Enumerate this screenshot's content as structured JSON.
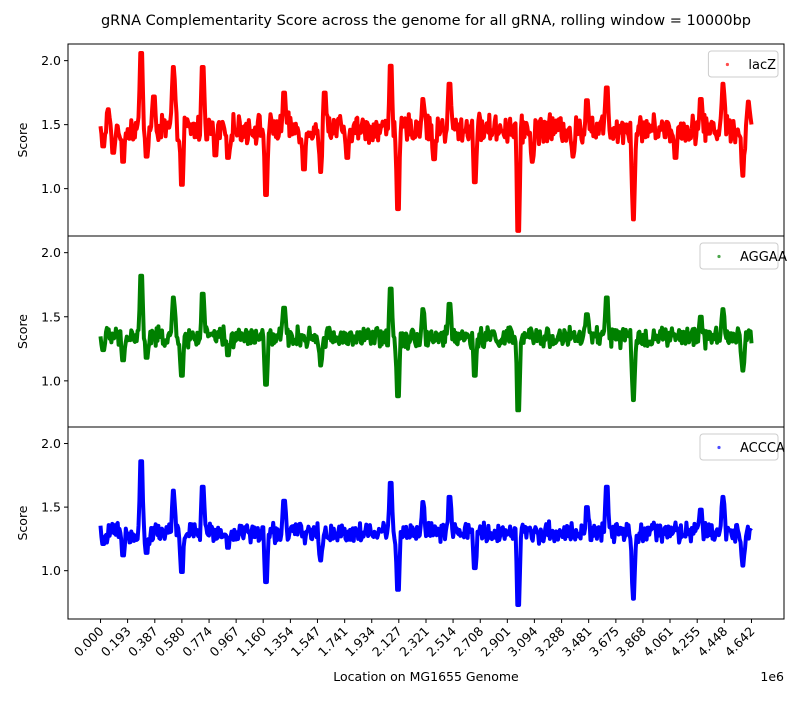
{
  "figure": {
    "title": "gRNA Complementarity Score across the genome for all gRNA, rolling window = 10000bp",
    "xlabel": "Location on MG1655 Genome",
    "x_offset_label": "1e6"
  },
  "chart_data": [
    {
      "type": "line",
      "ylabel": "Score",
      "ylim": [
        0.63,
        2.13
      ],
      "yticks": [
        "1.0",
        "1.5",
        "2.0"
      ],
      "legend": "top-right",
      "series": [
        {
          "name": "lacZ",
          "color": "#ff0000",
          "base": 1.47,
          "noise": 0.09,
          "events": [
            {
              "x": 0.02,
              "y": 1.33
            },
            {
              "x": 0.055,
              "y": 1.62
            },
            {
              "x": 0.09,
              "y": 1.28
            },
            {
              "x": 0.16,
              "y": 1.21
            },
            {
              "x": 0.29,
              "y": 2.06
            },
            {
              "x": 0.33,
              "y": 1.25
            },
            {
              "x": 0.38,
              "y": 1.72
            },
            {
              "x": 0.52,
              "y": 1.95
            },
            {
              "x": 0.58,
              "y": 1.03
            },
            {
              "x": 0.73,
              "y": 1.95
            },
            {
              "x": 0.82,
              "y": 1.26
            },
            {
              "x": 0.91,
              "y": 1.24
            },
            {
              "x": 1.18,
              "y": 0.95
            },
            {
              "x": 1.31,
              "y": 1.75
            },
            {
              "x": 1.45,
              "y": 1.15
            },
            {
              "x": 1.57,
              "y": 1.13
            },
            {
              "x": 1.6,
              "y": 1.75
            },
            {
              "x": 1.76,
              "y": 1.24
            },
            {
              "x": 2.07,
              "y": 1.96
            },
            {
              "x": 2.12,
              "y": 0.84
            },
            {
              "x": 2.3,
              "y": 1.7
            },
            {
              "x": 2.38,
              "y": 1.23
            },
            {
              "x": 2.49,
              "y": 1.82
            },
            {
              "x": 2.67,
              "y": 1.05
            },
            {
              "x": 2.98,
              "y": 0.67
            },
            {
              "x": 3.08,
              "y": 1.21
            },
            {
              "x": 3.37,
              "y": 1.25
            },
            {
              "x": 3.47,
              "y": 1.69
            },
            {
              "x": 3.61,
              "y": 1.79
            },
            {
              "x": 3.8,
              "y": 0.76
            },
            {
              "x": 4.1,
              "y": 1.24
            },
            {
              "x": 4.28,
              "y": 1.7
            },
            {
              "x": 4.44,
              "y": 1.82
            },
            {
              "x": 4.58,
              "y": 1.1
            },
            {
              "x": 4.62,
              "y": 1.68
            }
          ]
        }
      ]
    },
    {
      "type": "line",
      "ylabel": "Score",
      "ylim": [
        0.64,
        2.13
      ],
      "yticks": [
        "1.0",
        "1.5",
        "2.0"
      ],
      "legend": "top-right",
      "series": [
        {
          "name": "AGGAA",
          "color": "#008000",
          "base": 1.34,
          "noise": 0.065,
          "events": [
            {
              "x": 0.02,
              "y": 1.24
            },
            {
              "x": 0.16,
              "y": 1.16
            },
            {
              "x": 0.29,
              "y": 1.82
            },
            {
              "x": 0.33,
              "y": 1.18
            },
            {
              "x": 0.52,
              "y": 1.65
            },
            {
              "x": 0.58,
              "y": 1.04
            },
            {
              "x": 0.73,
              "y": 1.68
            },
            {
              "x": 0.91,
              "y": 1.2
            },
            {
              "x": 1.18,
              "y": 0.97
            },
            {
              "x": 1.31,
              "y": 1.57
            },
            {
              "x": 1.57,
              "y": 1.12
            },
            {
              "x": 2.07,
              "y": 1.72
            },
            {
              "x": 2.12,
              "y": 0.88
            },
            {
              "x": 2.3,
              "y": 1.56
            },
            {
              "x": 2.49,
              "y": 1.6
            },
            {
              "x": 2.67,
              "y": 1.04
            },
            {
              "x": 2.98,
              "y": 0.77
            },
            {
              "x": 3.47,
              "y": 1.52
            },
            {
              "x": 3.61,
              "y": 1.65
            },
            {
              "x": 3.8,
              "y": 0.85
            },
            {
              "x": 4.28,
              "y": 1.5
            },
            {
              "x": 4.44,
              "y": 1.56
            },
            {
              "x": 4.58,
              "y": 1.08
            }
          ]
        }
      ]
    },
    {
      "type": "line",
      "ylabel": "Score",
      "ylim": [
        0.62,
        2.13
      ],
      "yticks": [
        "1.0",
        "1.5",
        "2.0"
      ],
      "legend": "top-right",
      "series": [
        {
          "name": "ACCCA",
          "color": "#0000ff",
          "base": 1.3,
          "noise": 0.065,
          "events": [
            {
              "x": 0.02,
              "y": 1.21
            },
            {
              "x": 0.16,
              "y": 1.12
            },
            {
              "x": 0.29,
              "y": 1.86
            },
            {
              "x": 0.33,
              "y": 1.14
            },
            {
              "x": 0.52,
              "y": 1.63
            },
            {
              "x": 0.58,
              "y": 0.99
            },
            {
              "x": 0.73,
              "y": 1.66
            },
            {
              "x": 0.91,
              "y": 1.18
            },
            {
              "x": 1.18,
              "y": 0.91
            },
            {
              "x": 1.31,
              "y": 1.55
            },
            {
              "x": 1.57,
              "y": 1.08
            },
            {
              "x": 2.07,
              "y": 1.69
            },
            {
              "x": 2.12,
              "y": 0.85
            },
            {
              "x": 2.3,
              "y": 1.54
            },
            {
              "x": 2.49,
              "y": 1.58
            },
            {
              "x": 2.67,
              "y": 1.02
            },
            {
              "x": 2.98,
              "y": 0.73
            },
            {
              "x": 3.47,
              "y": 1.5
            },
            {
              "x": 3.61,
              "y": 1.66
            },
            {
              "x": 3.8,
              "y": 0.78
            },
            {
              "x": 4.28,
              "y": 1.48
            },
            {
              "x": 4.44,
              "y": 1.58
            },
            {
              "x": 4.58,
              "y": 1.04
            }
          ]
        }
      ]
    }
  ],
  "x_axis": {
    "range": [
      -0.232,
      4.874
    ],
    "ticks": [
      0.0,
      0.193,
      0.387,
      0.58,
      0.774,
      0.967,
      1.16,
      1.354,
      1.547,
      1.741,
      1.934,
      2.127,
      2.321,
      2.514,
      2.708,
      2.901,
      3.094,
      3.288,
      3.481,
      3.675,
      3.868,
      4.061,
      4.255,
      4.448,
      4.642
    ],
    "tick_labels": [
      "0.000",
      "0.193",
      "0.387",
      "0.580",
      "0.774",
      "0.967",
      "1.160",
      "1.354",
      "1.547",
      "1.741",
      "1.934",
      "2.127",
      "2.321",
      "2.514",
      "2.708",
      "2.901",
      "3.094",
      "3.288",
      "3.481",
      "3.675",
      "3.868",
      "4.061",
      "4.255",
      "4.448",
      "4.642"
    ],
    "data_min": 0.0,
    "data_max": 4.642
  }
}
